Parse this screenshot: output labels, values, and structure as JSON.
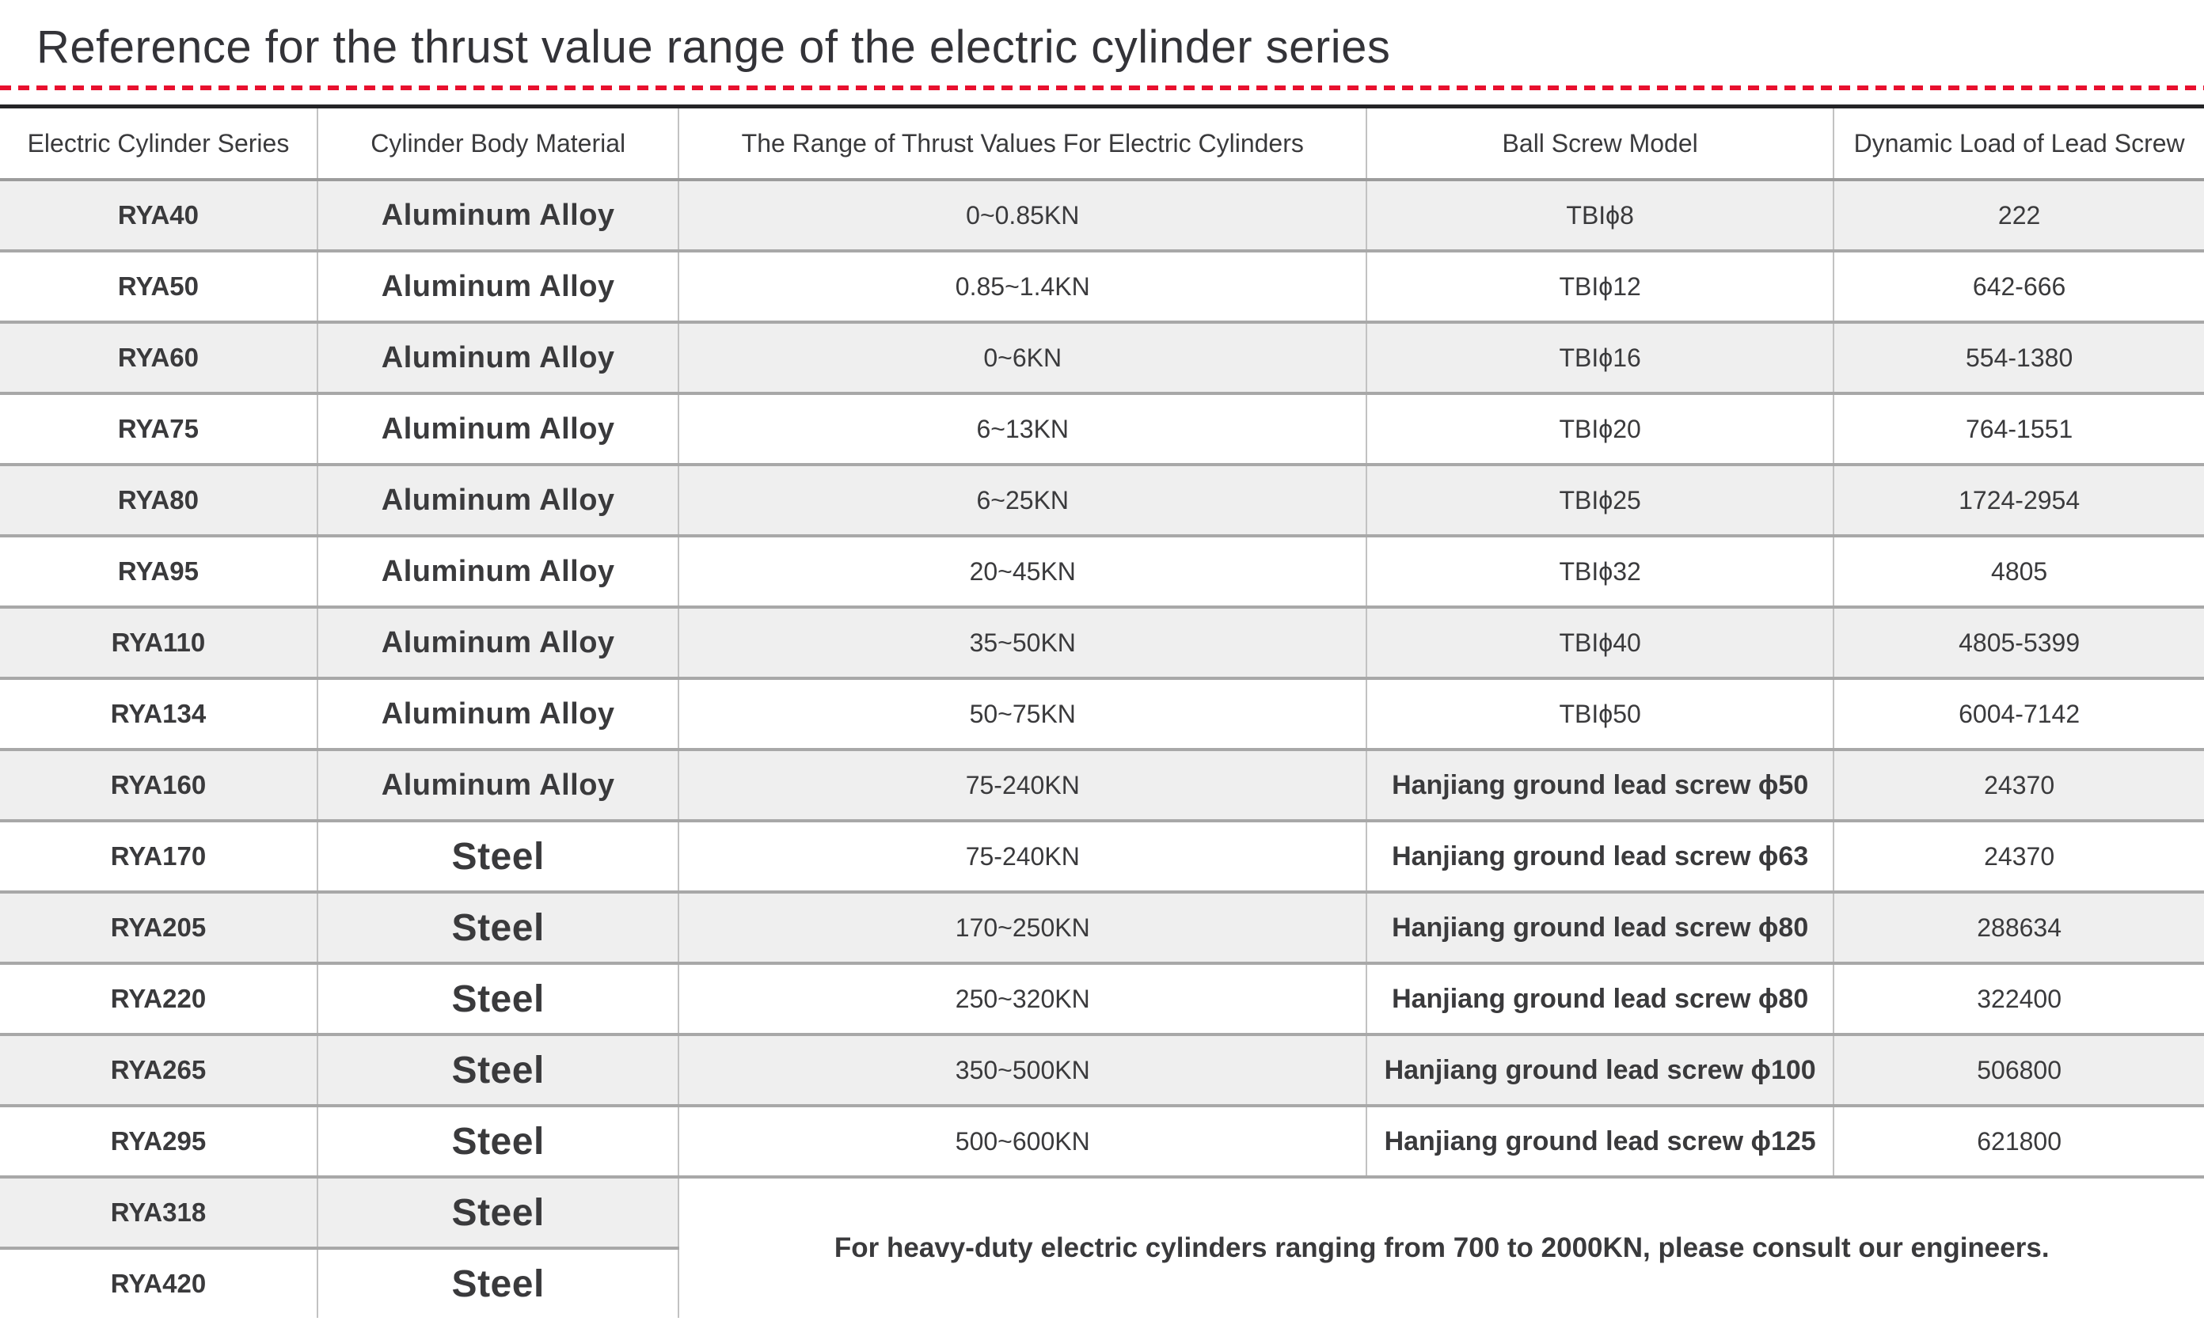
{
  "title": "Reference for the thrust value range of the electric cylinder series",
  "colors": {
    "accent_red": "#e8102e"
  },
  "table": {
    "columns": [
      "Electric Cylinder Series",
      "Cylinder Body Material",
      "The Range of Thrust Values For Electric Cylinders",
      "Ball Screw Model",
      "Dynamic Load of Lead Screw"
    ],
    "rows": [
      {
        "series": "RYA40",
        "material": "Aluminum Alloy",
        "thrust": "0~0.85KN",
        "screw": "TBIϕ8",
        "load": "222"
      },
      {
        "series": "RYA50",
        "material": "Aluminum Alloy",
        "thrust": "0.85~1.4KN",
        "screw": "TBIϕ12",
        "load": "642-666"
      },
      {
        "series": "RYA60",
        "material": "Aluminum Alloy",
        "thrust": "0~6KN",
        "screw": "TBIϕ16",
        "load": "554-1380"
      },
      {
        "series": "RYA75",
        "material": "Aluminum Alloy",
        "thrust": "6~13KN",
        "screw": "TBIϕ20",
        "load": "764-1551"
      },
      {
        "series": "RYA80",
        "material": "Aluminum Alloy",
        "thrust": "6~25KN",
        "screw": "TBIϕ25",
        "load": "1724-2954"
      },
      {
        "series": "RYA95",
        "material": "Aluminum Alloy",
        "thrust": "20~45KN",
        "screw": "TBIϕ32",
        "load": "4805"
      },
      {
        "series": "RYA110",
        "material": "Aluminum Alloy",
        "thrust": "35~50KN",
        "screw": "TBIϕ40",
        "load": "4805-5399"
      },
      {
        "series": "RYA134",
        "material": "Aluminum Alloy",
        "thrust": "50~75KN",
        "screw": "TBIϕ50",
        "load": "6004-7142"
      },
      {
        "series": "RYA160",
        "material": "Aluminum Alloy",
        "thrust": "75-240KN",
        "screw": "Hanjiang ground lead screw ϕ50",
        "load": "24370"
      },
      {
        "series": "RYA170",
        "material": "Steel",
        "thrust": "75-240KN",
        "screw": "Hanjiang ground lead screw ϕ63",
        "load": "24370"
      },
      {
        "series": "RYA205",
        "material": "Steel",
        "thrust": "170~250KN",
        "screw": "Hanjiang ground lead screw ϕ80",
        "load": "288634"
      },
      {
        "series": "RYA220",
        "material": "Steel",
        "thrust": "250~320KN",
        "screw": "Hanjiang ground lead screw ϕ80",
        "load": "322400"
      },
      {
        "series": "RYA265",
        "material": "Steel",
        "thrust": "350~500KN",
        "screw": "Hanjiang ground lead screw ϕ100",
        "load": "506800"
      },
      {
        "series": "RYA295",
        "material": "Steel",
        "thrust": "500~600KN",
        "screw": "Hanjiang ground lead screw ϕ125",
        "load": "621800"
      }
    ],
    "tail_rows": [
      {
        "series": "RYA318",
        "material": "Steel"
      },
      {
        "series": "RYA420",
        "material": "Steel"
      }
    ],
    "note": "For heavy-duty electric cylinders ranging from 700 to 2000KN, please consult our engineers."
  }
}
